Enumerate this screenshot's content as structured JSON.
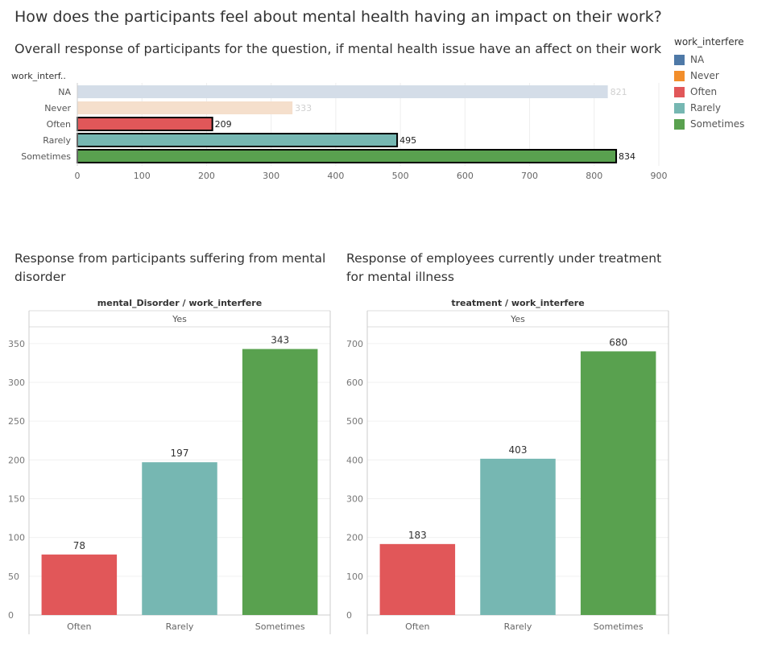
{
  "dashboard_title": "How does the participants feel about mental health having an impact on their work?",
  "top_chart_subtitle": "Overall response of participants for the question, if mental health issue have an affect on their work",
  "left_panel_title": "Response from participants suffering from mental disorder",
  "right_panel_title": "Response of employees currently under treatment for mental illness",
  "legend": {
    "title": "work_interfere",
    "items": [
      {
        "label": "NA",
        "color": "#4e79a7"
      },
      {
        "label": "Never",
        "color": "#f28e2b"
      },
      {
        "label": "Often",
        "color": "#e15759"
      },
      {
        "label": "Rarely",
        "color": "#76b7b2"
      },
      {
        "label": "Sometimes",
        "color": "#59a14f"
      }
    ]
  },
  "chart_data": [
    {
      "type": "bar",
      "orientation": "horizontal",
      "row_header": "work_interf..",
      "categories": [
        "NA",
        "Never",
        "Often",
        "Rarely",
        "Sometimes"
      ],
      "values": [
        821,
        333,
        209,
        495,
        834
      ],
      "highlighted": [
        false,
        false,
        true,
        true,
        true
      ],
      "colors": [
        "#4e79a7",
        "#f28e2b",
        "#e15759",
        "#76b7b2",
        "#59a14f"
      ],
      "dim_colors": [
        "#d4dde8",
        "#f5dfcc",
        "#e15759",
        "#76b7b2",
        "#59a14f"
      ],
      "xlim": [
        0,
        900
      ],
      "xticks": [
        0,
        100,
        200,
        300,
        400,
        500,
        600,
        700,
        800,
        900
      ],
      "grid": true
    },
    {
      "type": "bar",
      "header_title": "mental_Disorder / work_interfere",
      "header_sub": "Yes",
      "categories": [
        "Often",
        "Rarely",
        "Sometimes"
      ],
      "values": [
        78,
        197,
        343
      ],
      "colors": [
        "#e15759",
        "#76b7b2",
        "#59a14f"
      ],
      "ylim": [
        0,
        355
      ],
      "yticks": [
        0,
        50,
        100,
        150,
        200,
        250,
        300,
        350
      ],
      "grid": true
    },
    {
      "type": "bar",
      "header_title": "treatment / work_interfere",
      "header_sub": "Yes",
      "categories": [
        "Often",
        "Rarely",
        "Sometimes"
      ],
      "values": [
        183,
        403,
        680
      ],
      "colors": [
        "#e15759",
        "#76b7b2",
        "#59a14f"
      ],
      "ylim": [
        0,
        710
      ],
      "yticks": [
        0,
        100,
        200,
        300,
        400,
        500,
        600,
        700
      ],
      "grid": true
    }
  ]
}
